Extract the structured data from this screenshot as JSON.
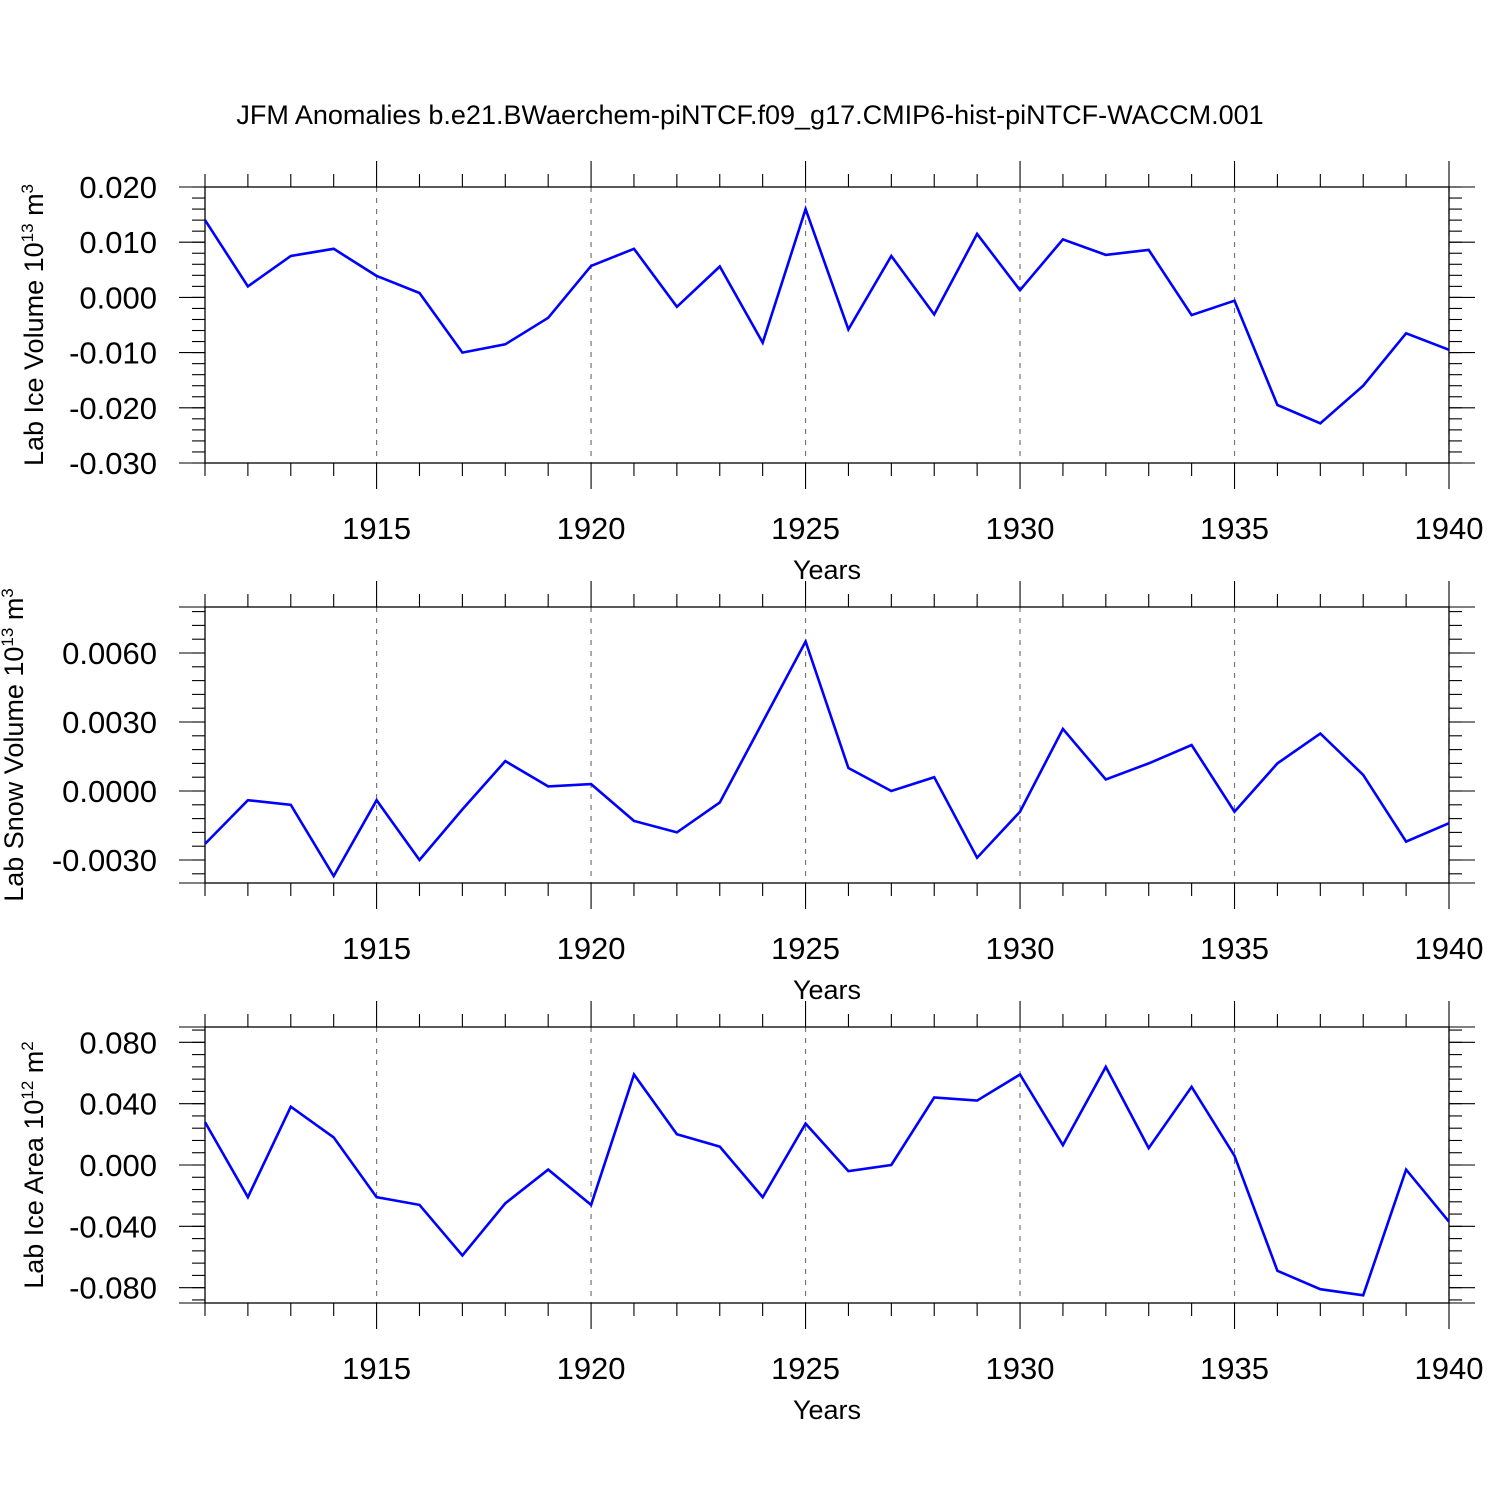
{
  "title": "JFM Anomalies b.e21.BWaerchem-piNTCF.f09_g17.CMIP6-hist-piNTCF-WACCM.001",
  "colors": {
    "line": "#0000ff",
    "grid": "#777777",
    "axis": "#000000"
  },
  "chart_data": [
    {
      "type": "line",
      "name": "lab-ice-volume",
      "ylabel_main": "Lab Ice Volume 10",
      "ylabel_exp": "13",
      "ylabel_unit": "m",
      "ylabel_unit_exp": "3",
      "xlabel": "Years",
      "xlim": [
        1911,
        1940
      ],
      "ylim": [
        -0.03,
        0.02
      ],
      "yticks": [
        0.02,
        0.01,
        0.0,
        -0.01,
        -0.02,
        -0.03
      ],
      "ytick_labels": [
        "0.020",
        "0.010",
        "0.000",
        "-0.010",
        "-0.020",
        "-0.030"
      ],
      "yminor_step": 0.002,
      "xticks": [
        1915,
        1920,
        1925,
        1930,
        1935,
        1940
      ],
      "xtick_labels": [
        "1915",
        "1920",
        "1925",
        "1930",
        "1935",
        "1940"
      ],
      "x": [
        1911,
        1912,
        1913,
        1914,
        1915,
        1916,
        1917,
        1918,
        1919,
        1920,
        1921,
        1922,
        1923,
        1924,
        1925,
        1926,
        1927,
        1928,
        1929,
        1930,
        1931,
        1932,
        1933,
        1934,
        1935,
        1936,
        1937,
        1938,
        1939,
        1940
      ],
      "values": [
        0.014,
        0.002,
        0.0075,
        0.0088,
        0.0039,
        0.0008,
        -0.01,
        -0.0085,
        -0.0037,
        0.0057,
        0.0088,
        -0.0017,
        0.0056,
        -0.0082,
        0.016,
        -0.0058,
        0.0075,
        -0.0031,
        0.0115,
        0.0013,
        0.0105,
        0.0077,
        0.0086,
        -0.0032,
        -0.0006,
        -0.0195,
        -0.0228,
        -0.016,
        -0.0065,
        -0.0095
      ]
    },
    {
      "type": "line",
      "name": "lab-snow-volume",
      "ylabel_main": "Lab Snow Volume 10",
      "ylabel_exp": "13",
      "ylabel_unit": "m",
      "ylabel_unit_exp": "3",
      "xlabel": "Years",
      "xlim": [
        1911,
        1940
      ],
      "ylim": [
        -0.004,
        0.008
      ],
      "yticks": [
        0.006,
        0.003,
        0.0,
        -0.003
      ],
      "ytick_labels": [
        "0.0060",
        "0.0030",
        "0.0000",
        "-0.0030"
      ],
      "yminor_step": 0.0006,
      "xticks": [
        1915,
        1920,
        1925,
        1930,
        1935,
        1940
      ],
      "xtick_labels": [
        "1915",
        "1920",
        "1925",
        "1930",
        "1935",
        "1940"
      ],
      "x": [
        1911,
        1912,
        1913,
        1914,
        1915,
        1916,
        1917,
        1918,
        1919,
        1920,
        1921,
        1922,
        1923,
        1924,
        1925,
        1926,
        1927,
        1928,
        1929,
        1930,
        1931,
        1932,
        1933,
        1934,
        1935,
        1936,
        1937,
        1938,
        1939,
        1940
      ],
      "values": [
        -0.0023,
        -0.0004,
        -0.0006,
        -0.0037,
        -0.0004,
        -0.003,
        -0.0008,
        0.0013,
        0.0002,
        0.0003,
        -0.0013,
        -0.0018,
        -0.0005,
        0.003,
        0.0065,
        0.001,
        0.0,
        0.0006,
        -0.0029,
        -0.0009,
        0.0027,
        0.0005,
        0.0012,
        0.002,
        -0.0009,
        0.0012,
        0.0025,
        0.0007,
        -0.0022,
        -0.0014
      ]
    },
    {
      "type": "line",
      "name": "lab-ice-area",
      "ylabel_main": "Lab Ice Area 10",
      "ylabel_exp": "12",
      "ylabel_unit": "m",
      "ylabel_unit_exp": "2",
      "xlabel": "Years",
      "xlim": [
        1911,
        1940
      ],
      "ylim": [
        -0.09,
        0.09
      ],
      "yticks": [
        0.08,
        0.04,
        0.0,
        -0.04,
        -0.08
      ],
      "ytick_labels": [
        "0.080",
        "0.040",
        "0.000",
        "-0.040",
        "-0.080"
      ],
      "yminor_step": 0.008,
      "xticks": [
        1915,
        1920,
        1925,
        1930,
        1935,
        1940
      ],
      "xtick_labels": [
        "1915",
        "1920",
        "1925",
        "1930",
        "1935",
        "1940"
      ],
      "x": [
        1911,
        1912,
        1913,
        1914,
        1915,
        1916,
        1917,
        1918,
        1919,
        1920,
        1921,
        1922,
        1923,
        1924,
        1925,
        1926,
        1927,
        1928,
        1929,
        1930,
        1931,
        1932,
        1933,
        1934,
        1935,
        1936,
        1937,
        1938,
        1939,
        1940
      ],
      "values": [
        0.028,
        -0.021,
        0.038,
        0.018,
        -0.021,
        -0.026,
        -0.059,
        -0.025,
        -0.003,
        -0.026,
        0.059,
        0.02,
        0.012,
        -0.021,
        0.027,
        -0.004,
        0.0,
        0.044,
        0.042,
        0.059,
        0.013,
        0.064,
        0.011,
        0.051,
        0.006,
        -0.069,
        -0.081,
        -0.085,
        -0.003,
        -0.037
      ]
    }
  ]
}
